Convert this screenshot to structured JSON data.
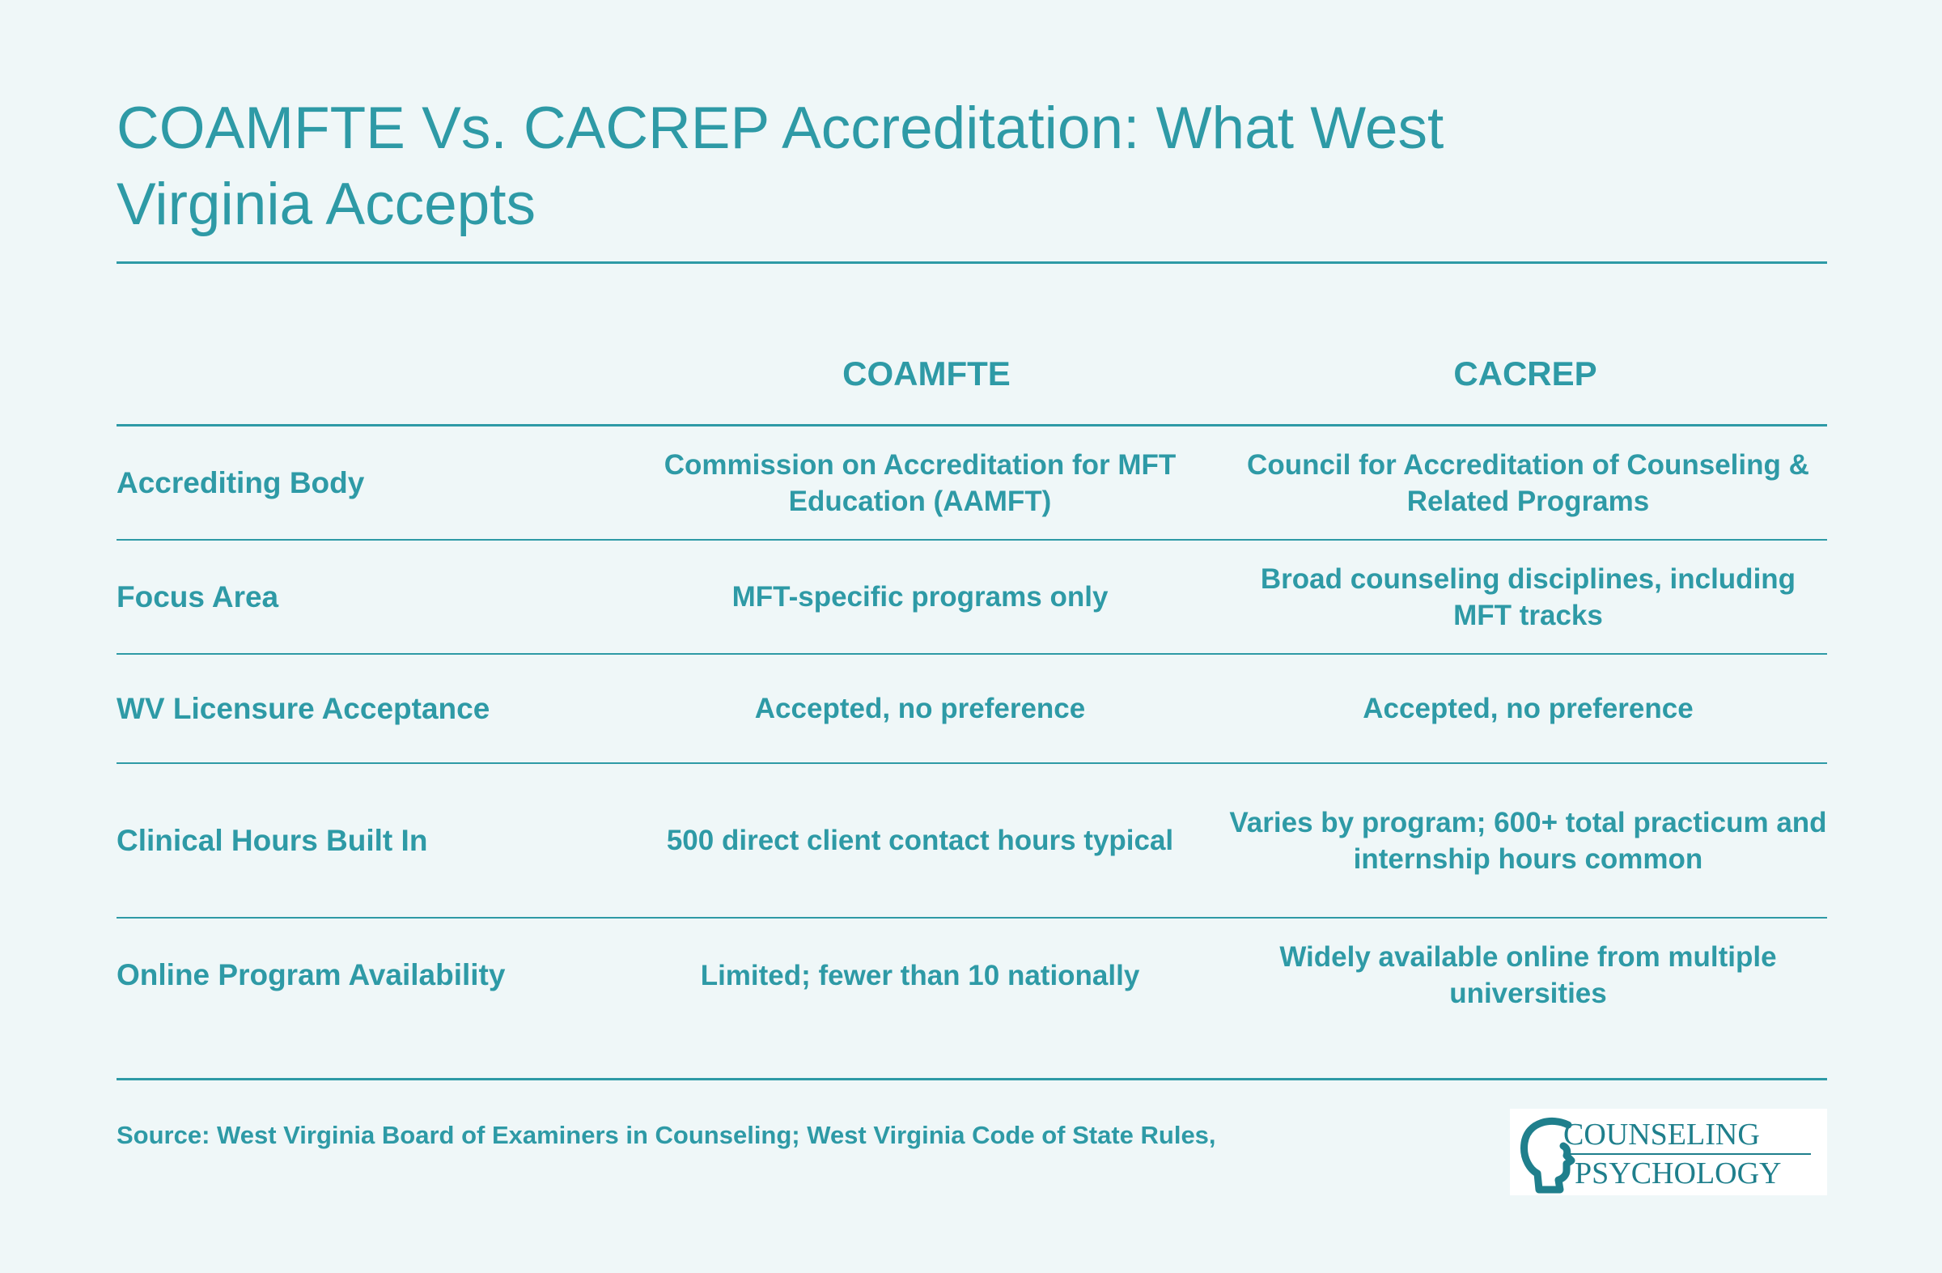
{
  "page": {
    "title": "COAMFTE Vs. CACREP Accreditation: What West Virginia Accepts"
  },
  "table": {
    "headers": [
      "",
      "COAMFTE",
      "CACREP"
    ],
    "rows": [
      {
        "label": "Accrediting Body",
        "coamfte": "Commission on Accreditation for MFT Education (AAMFT)",
        "cacrep": "Council for Accreditation of Counseling & Related Programs"
      },
      {
        "label": "Focus Area",
        "coamfte": "MFT-specific programs only",
        "cacrep": "Broad counseling disciplines, including MFT tracks"
      },
      {
        "label": "WV Licensure Acceptance",
        "coamfte": "Accepted, no preference",
        "cacrep": "Accepted, no preference"
      },
      {
        "label": "Clinical Hours Built In",
        "coamfte": "500 direct client contact hours typical",
        "cacrep": "Varies by program; 600+ total practicum and internship hours common"
      },
      {
        "label": "Online Program Availability",
        "coamfte": "Limited; fewer than 10 nationally",
        "cacrep": "Widely available online from multiple universities"
      }
    ]
  },
  "footer": {
    "source": "Source: West Virginia Board of Examiners in Counseling; West Virginia Code of State Rules,",
    "logo": {
      "line1": "COUNSELING",
      "line2": "PSYCHOLOGY",
      "icon": "head-profile-icon"
    }
  },
  "colors": {
    "accent": "#2e9aa6",
    "background": "#eff7f8",
    "logo_text": "#1f7f8c"
  }
}
